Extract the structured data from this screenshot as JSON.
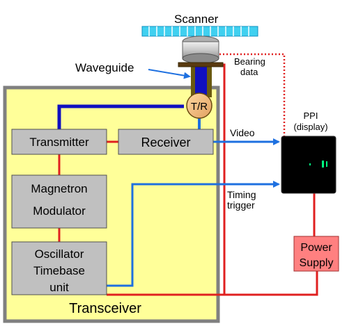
{
  "labels": {
    "scanner": "Scanner",
    "waveguide": "Waveguide",
    "bearing_line1": "Bearing",
    "bearing_line2": "data",
    "tr": "T/R",
    "ppi_line1": "PPI",
    "ppi_line2": "(display)",
    "video": "Video",
    "timing_line1": "Timing",
    "timing_line2": "trigger",
    "transmitter": "Transmitter",
    "receiver": "Receiver",
    "magnetron_line1": "Magnetron",
    "magnetron_line2": "Modulator",
    "oscillator_line1": "Oscillator",
    "oscillator_line2": "Timebase",
    "oscillator_line3": "unit",
    "power_line1": "Power",
    "power_line2": "Supply",
    "transceiver": "Transceiver"
  },
  "colors": {
    "transceiver_fill": "#ffff99",
    "transceiver_border": "#808080",
    "module_fill": "#c0c0c0",
    "power_line": "#e02020",
    "signal_line": "#1e70e0",
    "waveguide_blue": "#1010c0",
    "scanner_cyan": "#40d0f0",
    "power_supply_fill": "#ff8080",
    "ppi_screen": "#000000",
    "ppi_echo": "#00ff80"
  }
}
